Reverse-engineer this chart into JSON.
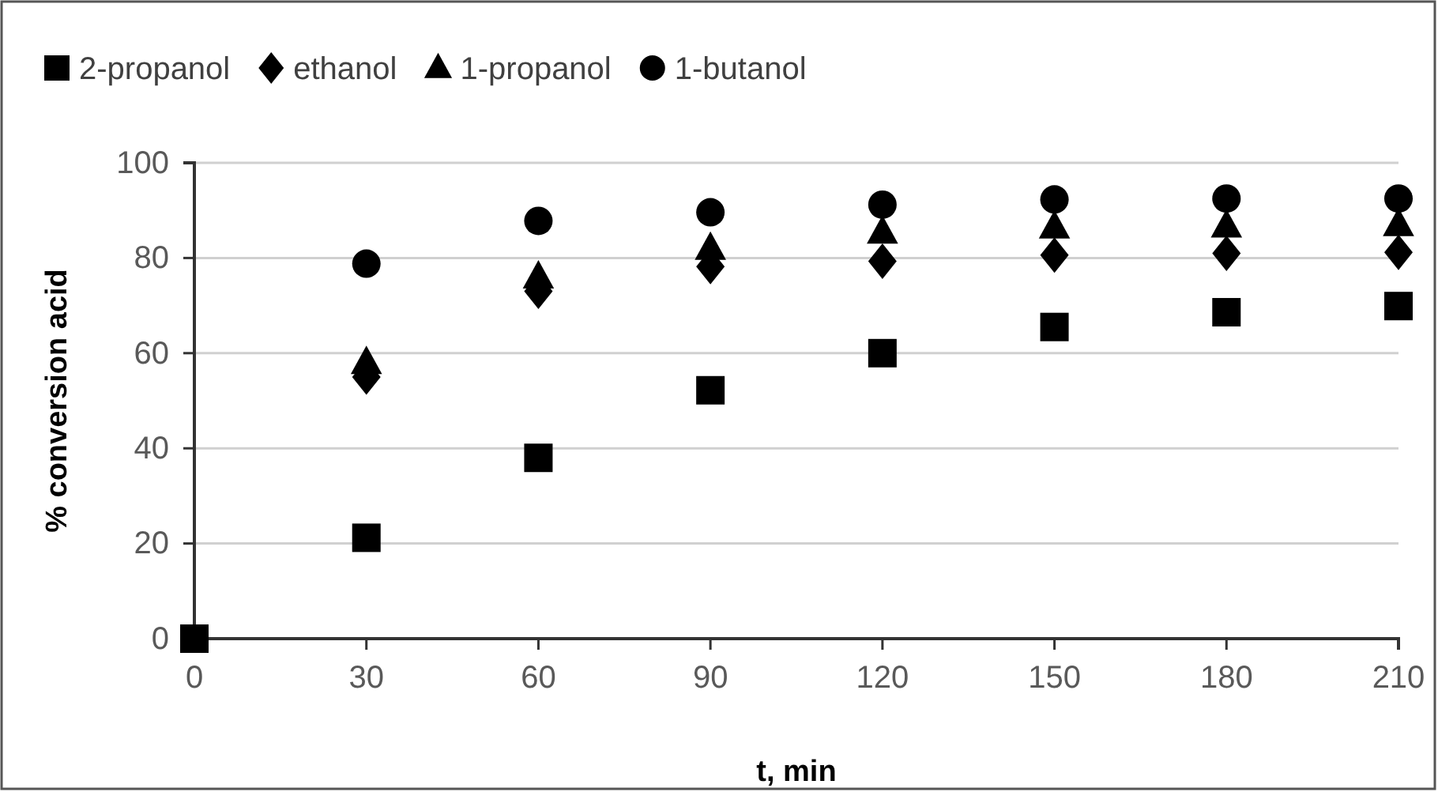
{
  "chart_data": {
    "type": "scatter",
    "xlabel": "t, min",
    "ylabel": "% conversion acid",
    "x": [
      0,
      30,
      60,
      90,
      120,
      150,
      180,
      210
    ],
    "series": [
      {
        "name": "2-propanol",
        "color": "#000000",
        "marker": "square",
        "values": [
          0,
          21.2,
          38,
          52.2,
          60,
          65.5,
          68.6,
          69.9
        ]
      },
      {
        "name": "ethanol",
        "color": "#000000",
        "marker": "diamond",
        "values": [
          null,
          55,
          73,
          78.2,
          79.3,
          80.6,
          81,
          81.2
        ]
      },
      {
        "name": "1-propanol",
        "color": "#000000",
        "marker": "triangle",
        "values": [
          null,
          58,
          76,
          82,
          85.4,
          86.5,
          86.7,
          87
        ]
      },
      {
        "name": "1-butanol",
        "color": "#000000",
        "marker": "circle",
        "values": [
          null,
          78.8,
          87.8,
          89.6,
          91.2,
          92.3,
          92.5,
          92.5
        ]
      }
    ],
    "xlim": [
      0,
      210
    ],
    "xticks": [
      0,
      30,
      60,
      90,
      120,
      150,
      180,
      210
    ],
    "ylim": [
      0,
      100
    ],
    "yticks": [
      0,
      20,
      40,
      60,
      80,
      100
    ],
    "grid": "y",
    "legend": "top"
  }
}
